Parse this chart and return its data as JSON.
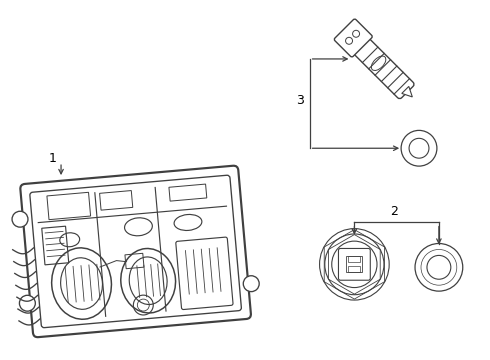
{
  "background_color": "#ffffff",
  "line_color": "#404040",
  "label_color": "#000000",
  "fig_width": 4.9,
  "fig_height": 3.6,
  "dpi": 100
}
